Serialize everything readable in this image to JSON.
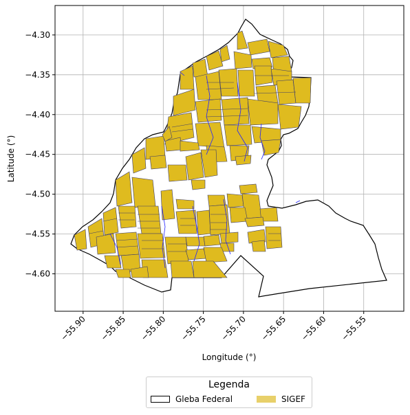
{
  "map": {
    "xlabel": "Longitude (°)",
    "ylabel": "Latitude (°)",
    "x_ticks": [
      "−55.90",
      "−55.85",
      "−55.80",
      "−55.75",
      "−55.70",
      "−55.65",
      "−55.60",
      "−55.55"
    ],
    "y_ticks": [
      "−4.30",
      "−4.35",
      "−4.40",
      "−4.45",
      "−4.50",
      "−4.55",
      "−4.60"
    ],
    "x_tick_values": [
      -55.9,
      -55.85,
      -55.8,
      -55.75,
      -55.7,
      -55.65,
      -55.6,
      -55.55
    ],
    "y_tick_values": [
      -4.3,
      -4.35,
      -4.4,
      -4.45,
      -4.5,
      -4.55,
      -4.6
    ],
    "xlim": [
      -55.935,
      -55.5
    ],
    "ylim": [
      -4.647,
      -4.263
    ],
    "grid": true
  },
  "legend": {
    "title": "Legenda",
    "items": [
      {
        "label": "Gleba Federal",
        "color": "#ffffff",
        "edge": "#000000"
      },
      {
        "label": "SIGEF",
        "color": "#e8d06a",
        "edge": "none"
      }
    ]
  },
  "colors": {
    "parcel_fill": "#dfbb1f",
    "parcel_edge": "#3a3a6a",
    "river": "#2222ff",
    "boundary": "#000000",
    "grid": "#b0b0b0"
  }
}
